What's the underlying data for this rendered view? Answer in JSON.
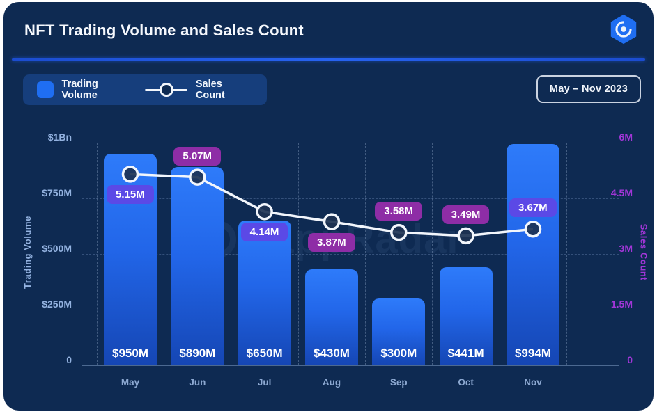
{
  "header": {
    "title": "NFT Trading Volume and Sales Count",
    "logo_icon": "dappradar-hexagon-logo"
  },
  "legend": {
    "bar_label": "Trading Volume",
    "line_label": "Sales Count"
  },
  "period_badge": "May – Nov 2023",
  "axes": {
    "left_title": "Trading Volume",
    "right_title": "Sales Count",
    "left_ticks": [
      "$1Bn",
      "$750M",
      "$500M",
      "$250M",
      "0"
    ],
    "right_ticks": [
      "6M",
      "4.5M",
      "3M",
      "1.5M",
      "0"
    ]
  },
  "watermark": "dappRadar",
  "colors": {
    "card_bg": "#0e2a52",
    "accent_blue": "#1f6ef2",
    "bar_top": "#2e7bfa",
    "bar_bottom": "#1546b4",
    "line": "#f2f6fc",
    "badge_indigo": "#5b49e6",
    "badge_purple": "#8e2da6",
    "right_axis": "#a236d8",
    "left_axis": "#93b2e0",
    "legend_bg": "#163e7c",
    "divider": "#2763f0"
  },
  "chart_data": {
    "type": "bar",
    "subtype": "bar+line combo, dual axis",
    "title": "NFT Trading Volume and Sales Count",
    "period": "May – Nov 2023",
    "categories": [
      "May",
      "Jun",
      "Jul",
      "Aug",
      "Sep",
      "Oct",
      "Nov"
    ],
    "series": [
      {
        "name": "Trading Volume",
        "type": "bar",
        "axis": "left",
        "unit": "USD millions",
        "values": [
          950,
          890,
          650,
          430,
          300,
          441,
          994
        ],
        "labels": [
          "$950M",
          "$890M",
          "$650M",
          "$430M",
          "$300M",
          "$441M",
          "$994M"
        ]
      },
      {
        "name": "Sales Count",
        "type": "line",
        "axis": "right",
        "unit": "millions of sales",
        "values": [
          5.15,
          5.07,
          4.14,
          3.87,
          3.58,
          3.49,
          3.67
        ],
        "labels": [
          "5.15M",
          "5.07M",
          "4.14M",
          "3.87M",
          "3.58M",
          "3.49M",
          "3.67M"
        ],
        "label_positions": [
          "below",
          "above",
          "below",
          "below",
          "above",
          "above",
          "above"
        ],
        "label_variants": [
          "indigo",
          "purple",
          "indigo",
          "purple",
          "purple",
          "purple",
          "indigo"
        ]
      }
    ],
    "left_axis_range_musd": [
      0,
      1000
    ],
    "right_axis_range_m": [
      0,
      6
    ],
    "grid": "dashed horizontal and vertical",
    "legend_position": "top-left"
  }
}
